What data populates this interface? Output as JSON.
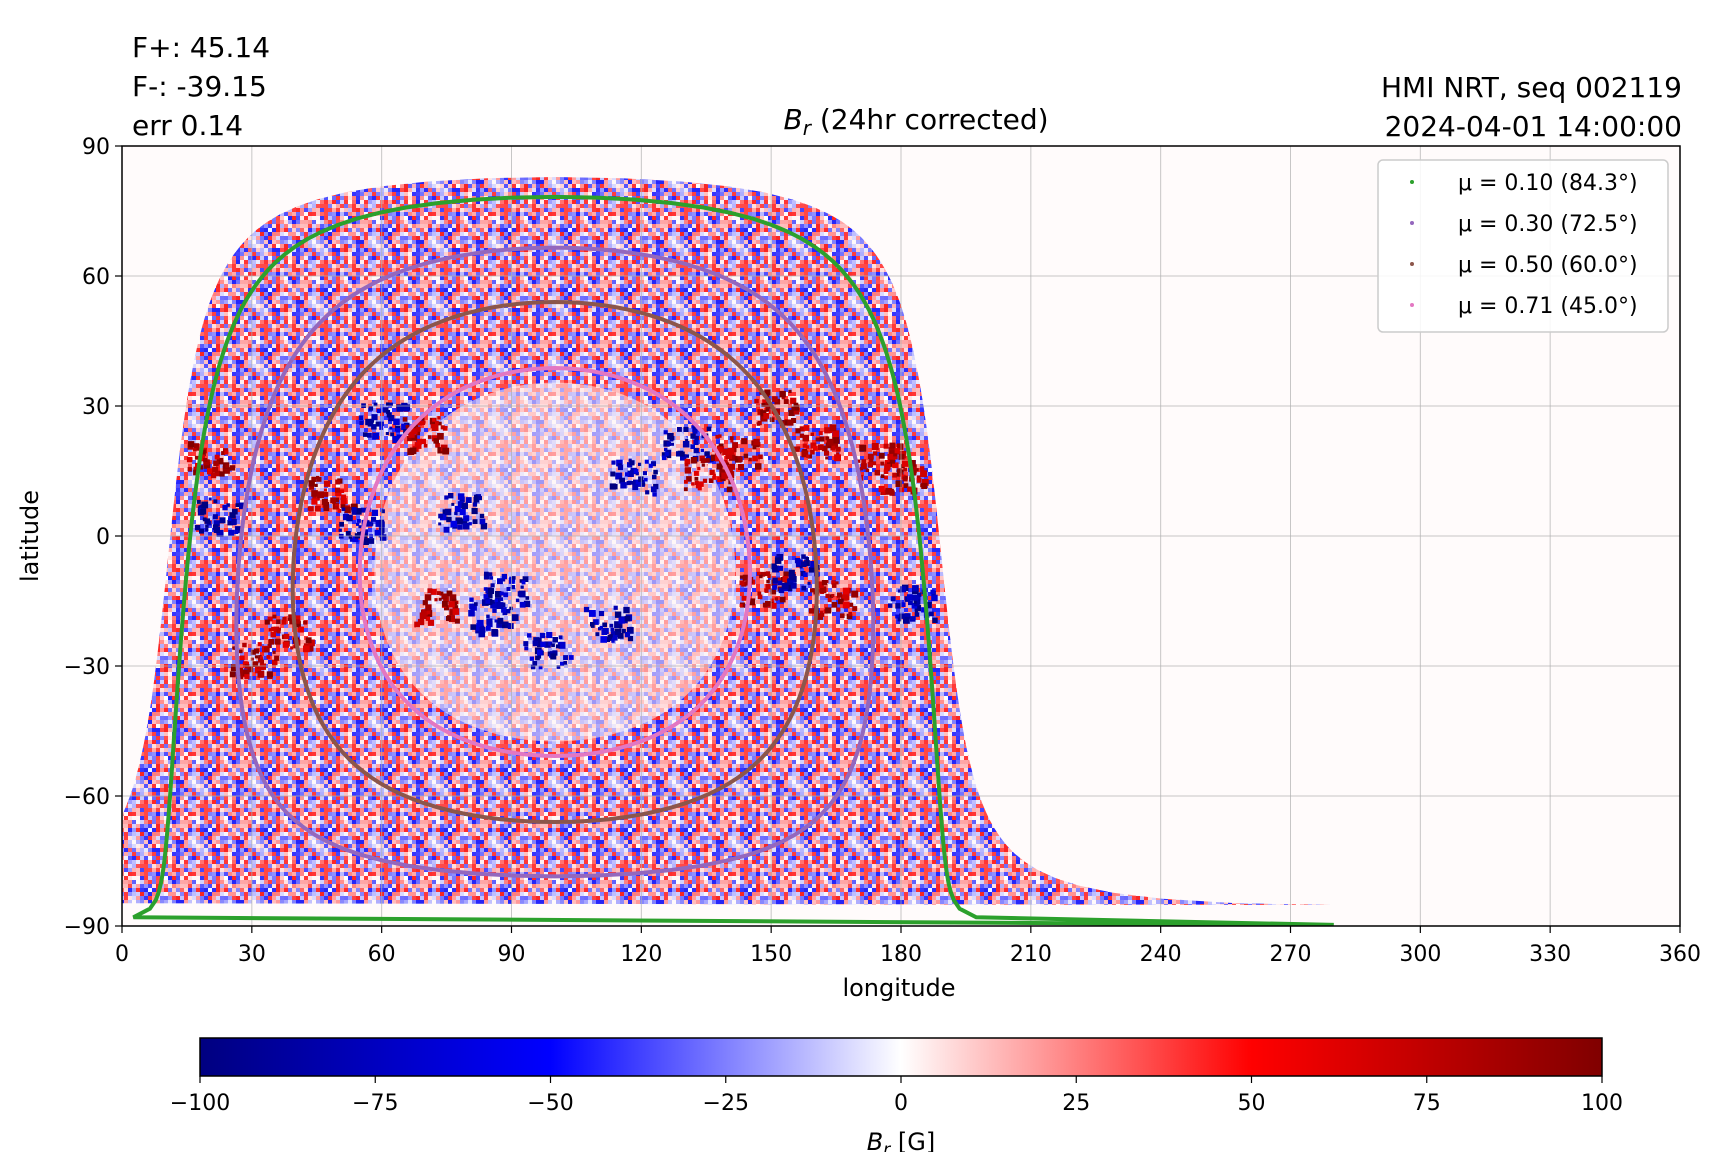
{
  "stats": {
    "flux_pos": "F+: 45.14",
    "flux_neg": "F-: -39.15",
    "err": "err 0.14"
  },
  "header_right": {
    "instrument": "HMI NRT, seq 002119",
    "datetime": "2024-04-01 14:00:00"
  },
  "chart_data": {
    "type": "heatmap",
    "title_symbol": "B",
    "title_sub": "r",
    "title_text": " (24hr corrected)",
    "xlabel": "longitude",
    "ylabel": "latitude",
    "xlim": [
      0,
      360
    ],
    "ylim": [
      -90,
      90
    ],
    "xticks": [
      0,
      30,
      60,
      90,
      120,
      150,
      180,
      210,
      240,
      270,
      300,
      330,
      360
    ],
    "yticks": [
      90,
      60,
      30,
      0,
      -30,
      -60,
      -90
    ],
    "ytick_labels": [
      "90",
      "60",
      "30",
      "0",
      "−30",
      "−60",
      "−90"
    ],
    "grid": true,
    "disk_center_lon": 100,
    "disk_center_lat": -6,
    "legend_position": "top-right",
    "legend": [
      {
        "label": "μ = 0.10 (84.3°)",
        "mu": 0.1,
        "angle_deg": 84.3,
        "color": "#2ca02c"
      },
      {
        "label": "μ = 0.30 (72.5°)",
        "mu": 0.3,
        "angle_deg": 72.5,
        "color": "#9467bd"
      },
      {
        "label": "μ = 0.50 (60.0°)",
        "mu": 0.5,
        "angle_deg": 60.0,
        "color": "#8c564b"
      },
      {
        "label": "μ = 0.71 (45.0°)",
        "mu": 0.71,
        "angle_deg": 45.0,
        "color": "#e377c2"
      }
    ],
    "colorbar": {
      "min": -100,
      "max": 100,
      "ticks": [
        -100,
        -75,
        -50,
        -25,
        0,
        25,
        50,
        75,
        100
      ],
      "tick_labels": [
        "−100",
        "−75",
        "−50",
        "−25",
        "0",
        "25",
        "50",
        "75",
        "100"
      ],
      "label_symbol": "B",
      "label_sub": "r",
      "label_text": " [G]",
      "colors": [
        "#000080",
        "#0000ff",
        "#ffffff",
        "#ff0000",
        "#800000"
      ]
    },
    "active_regions": [
      {
        "lon": 22,
        "lat": 5,
        "sign": -1
      },
      {
        "lon": 20,
        "lat": 18,
        "sign": 1
      },
      {
        "lon": 30,
        "lat": -28,
        "sign": 1
      },
      {
        "lon": 38,
        "lat": -22,
        "sign": 1
      },
      {
        "lon": 48,
        "lat": 10,
        "sign": 1
      },
      {
        "lon": 55,
        "lat": 3,
        "sign": -1
      },
      {
        "lon": 60,
        "lat": 27,
        "sign": -1
      },
      {
        "lon": 70,
        "lat": 24,
        "sign": 1
      },
      {
        "lon": 72,
        "lat": -16,
        "sign": 1
      },
      {
        "lon": 78,
        "lat": 6,
        "sign": -1
      },
      {
        "lon": 85,
        "lat": -18,
        "sign": -1
      },
      {
        "lon": 88,
        "lat": -12,
        "sign": -1
      },
      {
        "lon": 98,
        "lat": -26,
        "sign": -1
      },
      {
        "lon": 112,
        "lat": -20,
        "sign": -1
      },
      {
        "lon": 118,
        "lat": 14,
        "sign": -1
      },
      {
        "lon": 130,
        "lat": 22,
        "sign": -1
      },
      {
        "lon": 135,
        "lat": 15,
        "sign": 1
      },
      {
        "lon": 142,
        "lat": 20,
        "sign": 1
      },
      {
        "lon": 148,
        "lat": -12,
        "sign": 1
      },
      {
        "lon": 150,
        "lat": 30,
        "sign": 1
      },
      {
        "lon": 155,
        "lat": -8,
        "sign": -1
      },
      {
        "lon": 160,
        "lat": 22,
        "sign": 1
      },
      {
        "lon": 164,
        "lat": -14,
        "sign": 1
      },
      {
        "lon": 175,
        "lat": 18,
        "sign": 1
      },
      {
        "lon": 180,
        "lat": 14,
        "sign": 1
      },
      {
        "lon": 182,
        "lat": -15,
        "sign": -1
      }
    ]
  }
}
